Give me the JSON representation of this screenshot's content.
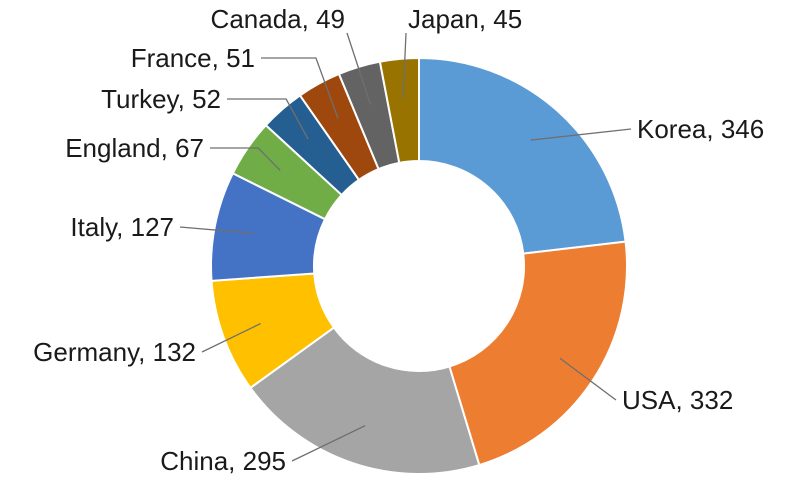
{
  "chart_data": {
    "type": "pie",
    "variant": "donut",
    "title": "",
    "legend": "none",
    "slices": [
      {
        "label": "Korea",
        "value": 346,
        "color": "#5B9BD5"
      },
      {
        "label": "USA",
        "value": 332,
        "color": "#ED7D31"
      },
      {
        "label": "China",
        "value": 295,
        "color": "#A5A5A5"
      },
      {
        "label": "Germany",
        "value": 132,
        "color": "#FFC000"
      },
      {
        "label": "Italy",
        "value": 127,
        "color": "#4472C4"
      },
      {
        "label": "England",
        "value": 67,
        "color": "#70AD47"
      },
      {
        "label": "Turkey",
        "value": 52,
        "color": "#255E91"
      },
      {
        "label": "France",
        "value": 51,
        "color": "#9E480E"
      },
      {
        "label": "Canada",
        "value": 49,
        "color": "#636363"
      },
      {
        "label": "Japan",
        "value": 45,
        "color": "#997300"
      }
    ]
  }
}
